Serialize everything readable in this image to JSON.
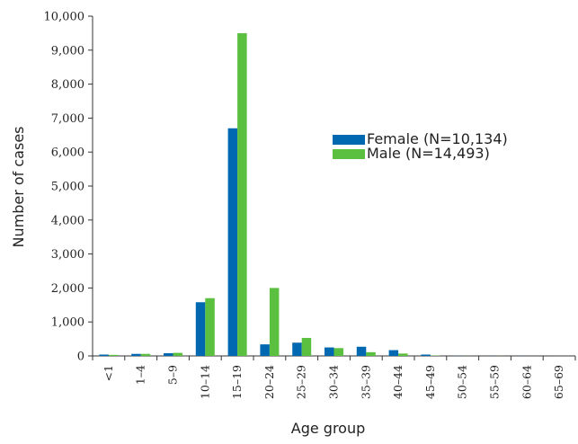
{
  "chart_data": {
    "type": "bar",
    "title": "",
    "xlabel": "Age group",
    "ylabel": "Number of cases",
    "ylim": [
      0,
      10000
    ],
    "yticks": [
      0,
      1000,
      2000,
      3000,
      4000,
      5000,
      6000,
      7000,
      8000,
      9000,
      10000
    ],
    "ytick_labels": [
      "0",
      "1,000",
      "2,000",
      "3,000",
      "4,000",
      "5,000",
      "6,000",
      "7,000",
      "8,000",
      "9,000",
      "10,000"
    ],
    "grid": false,
    "legend_position": "upper-right",
    "categories": [
      "<1",
      "1–4",
      "5–9",
      "10–14",
      "15–19",
      "20–24",
      "25–29",
      "30–34",
      "35–39",
      "40–44",
      "45–49",
      "50–54",
      "55–59",
      "60–64",
      "65–69"
    ],
    "series": [
      {
        "name": "Female (N=10,134)",
        "color": "#0068b0",
        "values": [
          40,
          60,
          80,
          1580,
          6700,
          340,
          390,
          250,
          270,
          170,
          40,
          5,
          3,
          2,
          1
        ]
      },
      {
        "name": "Male (N=14,493)",
        "color": "#5bbf3f",
        "values": [
          30,
          60,
          90,
          1700,
          9500,
          2000,
          530,
          230,
          110,
          70,
          10,
          3,
          2,
          1,
          1
        ]
      }
    ]
  }
}
